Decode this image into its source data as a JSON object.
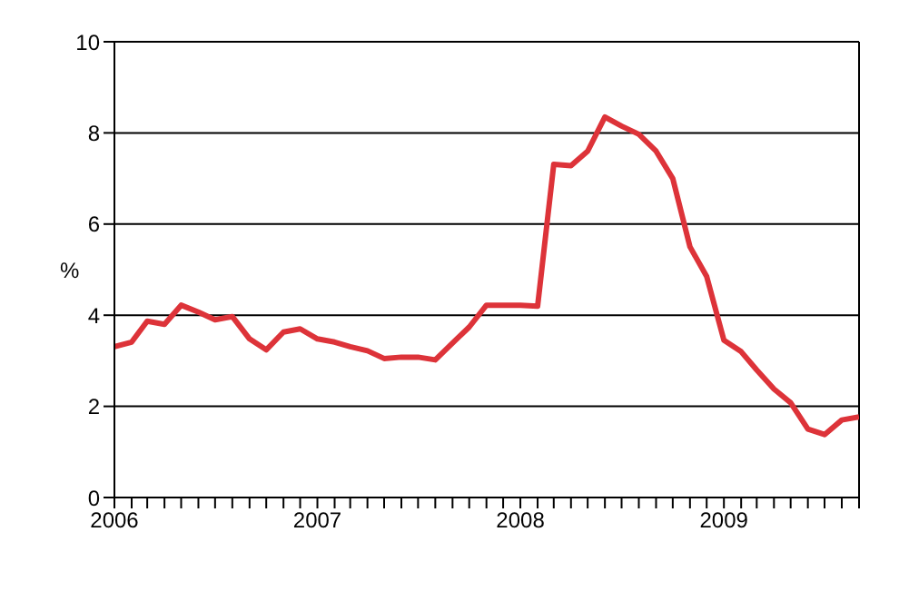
{
  "chart_data": {
    "type": "line",
    "ylabel": "%",
    "x": [
      "2006-01",
      "2006-02",
      "2006-03",
      "2006-04",
      "2006-05",
      "2006-06",
      "2006-07",
      "2006-08",
      "2006-09",
      "2006-10",
      "2006-11",
      "2006-12",
      "2007-01",
      "2007-02",
      "2007-03",
      "2007-04",
      "2007-05",
      "2007-06",
      "2007-07",
      "2007-08",
      "2007-09",
      "2007-10",
      "2007-11",
      "2007-12",
      "2008-01",
      "2008-02",
      "2008-03",
      "2008-04",
      "2008-05",
      "2008-06",
      "2008-07",
      "2008-08",
      "2008-09",
      "2008-10",
      "2008-11",
      "2008-12",
      "2009-01",
      "2009-02",
      "2009-03",
      "2009-04",
      "2009-05",
      "2009-06",
      "2009-07",
      "2009-08",
      "2009-09"
    ],
    "series": [
      {
        "color": "#dd3339",
        "values": [
          3.31,
          3.41,
          3.87,
          3.8,
          4.22,
          4.07,
          3.9,
          3.97,
          3.48,
          3.24,
          3.63,
          3.7,
          3.48,
          3.41,
          3.31,
          3.22,
          3.05,
          3.08,
          3.08,
          3.02,
          3.39,
          3.74,
          4.22,
          4.22,
          4.22,
          4.2,
          7.31,
          7.28,
          7.6,
          8.35,
          8.15,
          7.97,
          7.6,
          7.0,
          5.5,
          4.85,
          3.45,
          3.2,
          2.8,
          2.38,
          2.08,
          1.5,
          1.38,
          1.7,
          1.77
        ]
      }
    ],
    "xlim": [
      "2006-01",
      "2009-09"
    ],
    "xticks": [
      {
        "value": "2006-01",
        "label": "2006"
      },
      {
        "value": "2006-02",
        "label": null
      },
      {
        "value": "2006-03",
        "label": null
      },
      {
        "value": "2006-04",
        "label": null
      },
      {
        "value": "2006-05",
        "label": null
      },
      {
        "value": "2006-06",
        "label": null
      },
      {
        "value": "2006-07",
        "label": null
      },
      {
        "value": "2006-08",
        "label": null
      },
      {
        "value": "2006-09",
        "label": null
      },
      {
        "value": "2006-10",
        "label": null
      },
      {
        "value": "2006-11",
        "label": null
      },
      {
        "value": "2006-12",
        "label": null
      },
      {
        "value": "2007-01",
        "label": "2007"
      },
      {
        "value": "2007-02",
        "label": null
      },
      {
        "value": "2007-03",
        "label": null
      },
      {
        "value": "2007-04",
        "label": null
      },
      {
        "value": "2007-05",
        "label": null
      },
      {
        "value": "2007-06",
        "label": null
      },
      {
        "value": "2007-07",
        "label": null
      },
      {
        "value": "2007-08",
        "label": null
      },
      {
        "value": "2007-09",
        "label": null
      },
      {
        "value": "2007-10",
        "label": null
      },
      {
        "value": "2007-11",
        "label": null
      },
      {
        "value": "2007-12",
        "label": null
      },
      {
        "value": "2008-01",
        "label": "2008"
      },
      {
        "value": "2008-02",
        "label": null
      },
      {
        "value": "2008-03",
        "label": null
      },
      {
        "value": "2008-04",
        "label": null
      },
      {
        "value": "2008-05",
        "label": null
      },
      {
        "value": "2008-06",
        "label": null
      },
      {
        "value": "2008-07",
        "label": null
      },
      {
        "value": "2008-08",
        "label": null
      },
      {
        "value": "2008-09",
        "label": null
      },
      {
        "value": "2008-10",
        "label": null
      },
      {
        "value": "2008-11",
        "label": null
      },
      {
        "value": "2008-12",
        "label": null
      },
      {
        "value": "2009-01",
        "label": "2009"
      },
      {
        "value": "2009-02",
        "label": null
      },
      {
        "value": "2009-03",
        "label": null
      },
      {
        "value": "2009-04",
        "label": null
      },
      {
        "value": "2009-05",
        "label": null
      },
      {
        "value": "2009-06",
        "label": null
      },
      {
        "value": "2009-07",
        "label": null
      },
      {
        "value": "2009-08",
        "label": null
      },
      {
        "value": "2009-09",
        "label": null
      }
    ],
    "ylim": [
      0,
      10
    ],
    "yticks": [
      0,
      2,
      4,
      6,
      8,
      10
    ],
    "grid": "y",
    "marker": "none",
    "line_style": "solid",
    "legend": false
  }
}
